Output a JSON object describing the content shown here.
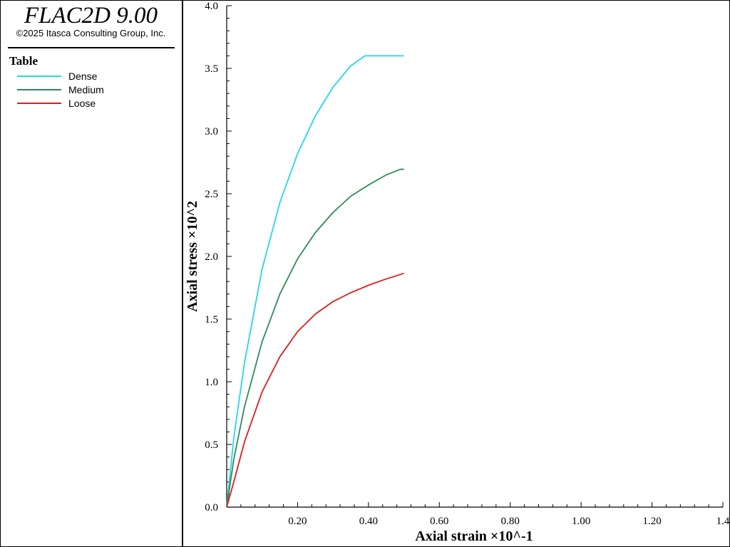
{
  "app": {
    "title": "FLAC2D 9.00",
    "copyright": "©2025 Itasca Consulting Group, Inc."
  },
  "legend": {
    "title": "Table",
    "items": [
      {
        "label": "Dense",
        "color": "#22d8e8"
      },
      {
        "label": "Medium",
        "color": "#2e8b57"
      },
      {
        "label": "Loose",
        "color": "#e01b1b"
      }
    ]
  },
  "chart_data": {
    "type": "line",
    "xlabel": "Axial strain ×10^-1",
    "ylabel": "Axial stress ×10^2",
    "xlim": [
      0,
      1.4
    ],
    "ylim": [
      0,
      4.0
    ],
    "x_tick_labels": [
      "0.20",
      "0.40",
      "0.60",
      "0.80",
      "1.00",
      "1.20",
      "1.4"
    ],
    "y_tick_labels": [
      "0.0",
      "0.5",
      "1.0",
      "1.5",
      "2.0",
      "2.5",
      "3.0",
      "3.5",
      "4.0"
    ],
    "grid": false,
    "legend_position": "left-panel",
    "series": [
      {
        "name": "Dense",
        "color": "#22d8e8",
        "x": [
          0,
          0.02,
          0.05,
          0.1,
          0.15,
          0.2,
          0.25,
          0.3,
          0.35,
          0.39,
          0.45,
          0.5
        ],
        "y": [
          0,
          0.55,
          1.15,
          1.9,
          2.43,
          2.82,
          3.12,
          3.35,
          3.52,
          3.6,
          3.6,
          3.6
        ]
      },
      {
        "name": "Medium",
        "color": "#2e8b57",
        "x": [
          0,
          0.02,
          0.05,
          0.1,
          0.15,
          0.2,
          0.25,
          0.3,
          0.35,
          0.4,
          0.45,
          0.49,
          0.5
        ],
        "y": [
          0,
          0.38,
          0.8,
          1.32,
          1.7,
          1.98,
          2.19,
          2.35,
          2.48,
          2.57,
          2.65,
          2.695,
          2.695
        ]
      },
      {
        "name": "Loose",
        "color": "#e01b1b",
        "x": [
          0,
          0.02,
          0.05,
          0.1,
          0.15,
          0.2,
          0.25,
          0.3,
          0.35,
          0.4,
          0.45,
          0.5
        ],
        "y": [
          0,
          0.2,
          0.52,
          0.92,
          1.2,
          1.4,
          1.54,
          1.64,
          1.71,
          1.77,
          1.82,
          1.865
        ]
      }
    ]
  }
}
